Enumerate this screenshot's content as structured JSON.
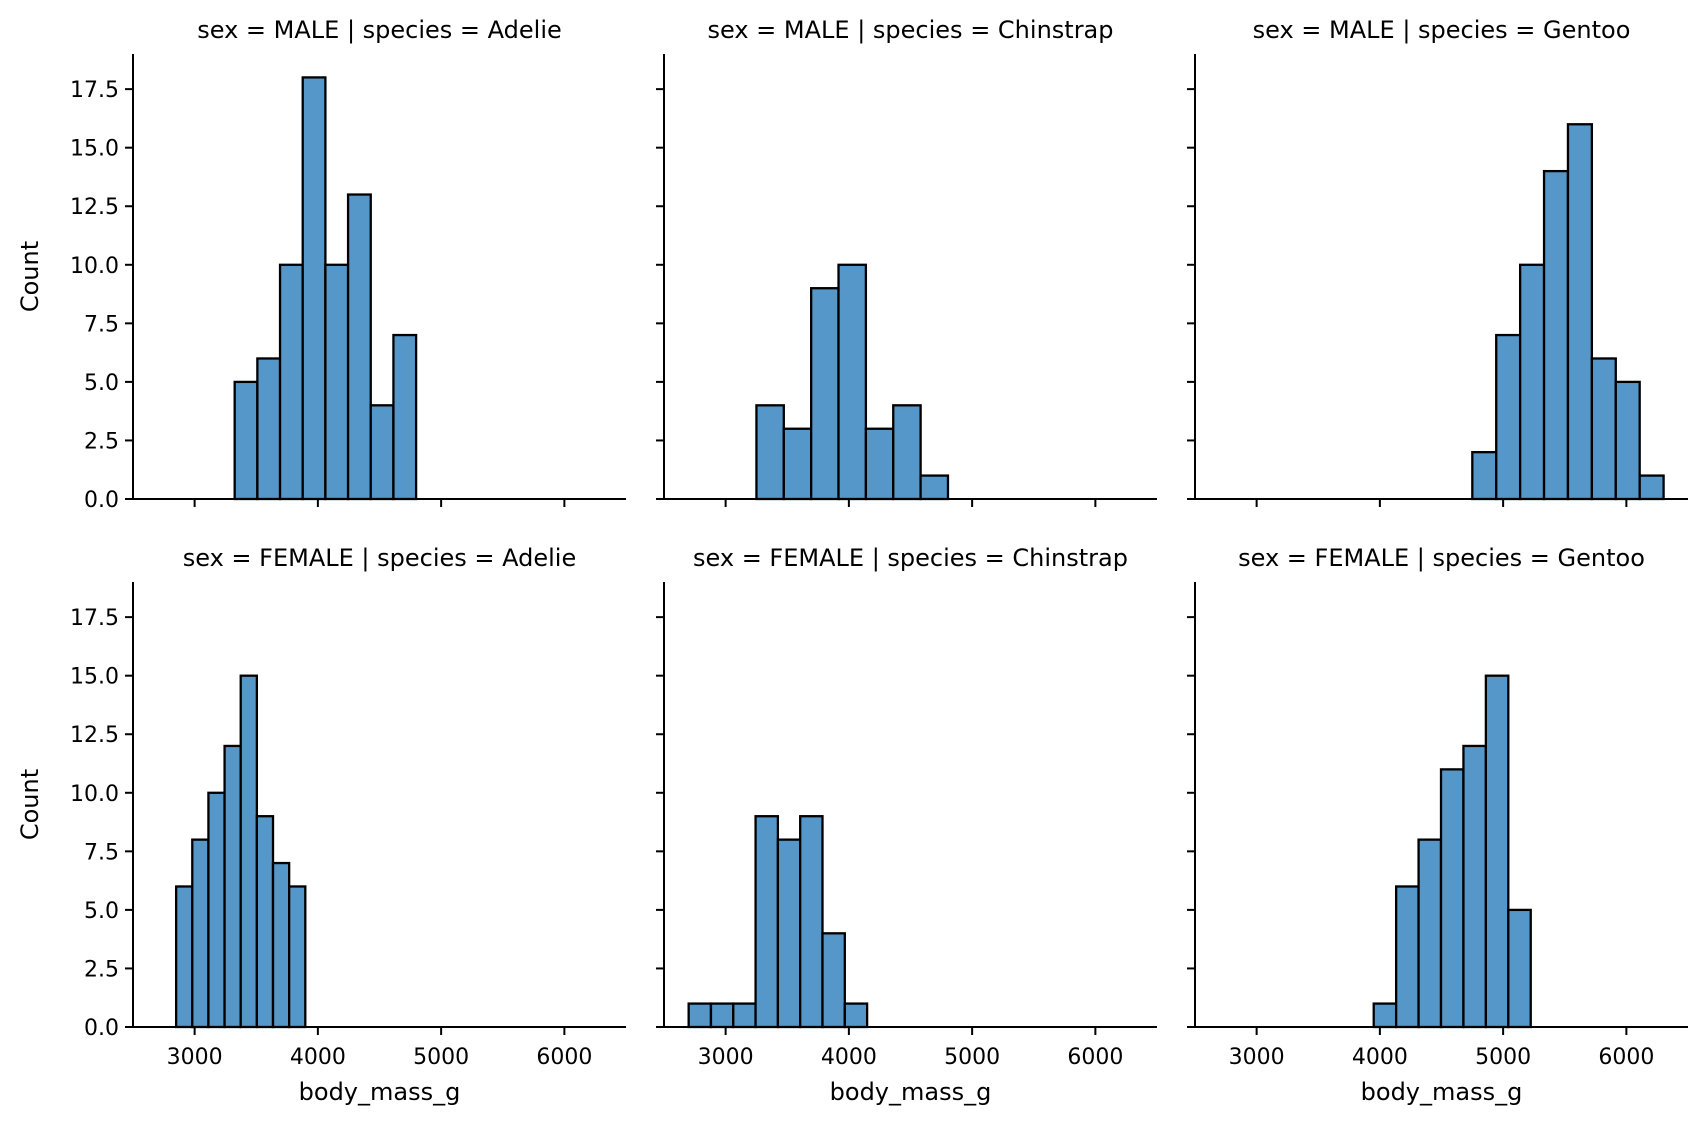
{
  "chart_data": {
    "type": "bar",
    "x_variable": "body_mass_g",
    "ylabel": "Count",
    "xlim": [
      2500,
      6500
    ],
    "ylim": [
      0,
      19
    ],
    "xticks": [
      3000,
      4000,
      5000,
      6000
    ],
    "yticks": [
      0.0,
      2.5,
      5.0,
      7.5,
      10.0,
      12.5,
      15.0,
      17.5
    ],
    "yticks_labels": [
      "0.0",
      "2.5",
      "5.0",
      "7.5",
      "10.0",
      "12.5",
      "15.0",
      "17.5"
    ],
    "bar_color": "#5497c8",
    "panels": [
      {
        "title": "sex = MALE | species = Adelie",
        "bin_start": 3325,
        "bin_width": 184,
        "counts": [
          5,
          6,
          10,
          18,
          10,
          13,
          4,
          7
        ]
      },
      {
        "title": "sex = MALE | species = Chinstrap",
        "bin_start": 3250,
        "bin_width": 222,
        "counts": [
          4,
          3,
          9,
          10,
          3,
          4,
          1
        ]
      },
      {
        "title": "sex = MALE | species = Gentoo",
        "bin_start": 4750,
        "bin_width": 194,
        "counts": [
          2,
          7,
          10,
          14,
          16,
          6,
          5,
          1
        ]
      },
      {
        "title": "sex = FEMALE | species = Adelie",
        "bin_start": 2850,
        "bin_width": 131,
        "counts": [
          6,
          8,
          10,
          12,
          15,
          9,
          7,
          6
        ]
      },
      {
        "title": "sex = FEMALE | species = Chinstrap",
        "bin_start": 2700,
        "bin_width": 181,
        "counts": [
          1,
          1,
          1,
          9,
          8,
          9,
          4,
          1
        ]
      },
      {
        "title": "sex = FEMALE | species = Gentoo",
        "bin_start": 3950,
        "bin_width": 182,
        "counts": [
          1,
          6,
          8,
          11,
          12,
          15,
          5
        ]
      }
    ]
  }
}
